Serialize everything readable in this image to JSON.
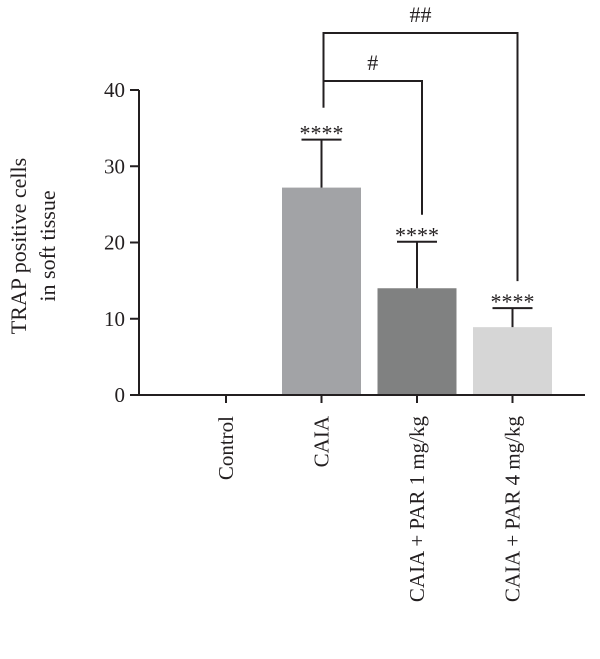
{
  "chart_data": {
    "type": "bar",
    "title": "",
    "xlabel": "",
    "ylabel_lines": [
      "TRAP positive cells",
      "in soft tissue"
    ],
    "categories": [
      "Control",
      "CAIA",
      "CAIA + PAR 1 mg/kg",
      "CAIA + PAR 4 mg/kg"
    ],
    "values": [
      0,
      27.2,
      14.0,
      8.9
    ],
    "error_upper": [
      0,
      33.5,
      20.1,
      11.4
    ],
    "bar_colors": [
      "#ffffff",
      "#a2a3a6",
      "#808181",
      "#d6d6d6"
    ],
    "significance_labels": [
      "",
      "****",
      "****",
      "****"
    ],
    "ylim": [
      0,
      40
    ],
    "yticks": [
      0,
      10,
      20,
      30,
      40
    ],
    "grid": false,
    "comparisons": [
      {
        "from": 1,
        "to": 2,
        "label": "#"
      },
      {
        "from": 1,
        "to": 3,
        "label": "##"
      }
    ]
  }
}
